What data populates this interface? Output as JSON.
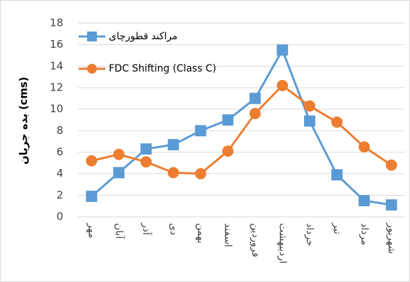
{
  "chart_data": {
    "type": "line",
    "y_label": "بده جریان (cms)",
    "categories": [
      "مهر",
      "آبان",
      "آذر",
      "دی",
      "بهمن",
      "اسفند",
      "فروردین",
      "اردیبهشت",
      "خرداد",
      "تیر",
      "مرداد",
      "شهریور"
    ],
    "series": [
      {
        "name": "مراکند قطورچای",
        "color": "#5b9bd5",
        "marker": "square",
        "values": [
          1.9,
          4.1,
          6.3,
          6.7,
          8.0,
          9.0,
          11.0,
          15.5,
          8.9,
          3.9,
          1.5,
          1.1
        ]
      },
      {
        "name": "FDC Shifting (Class C)",
        "color": "#ed7d31",
        "marker": "circle",
        "values": [
          5.2,
          5.8,
          5.1,
          4.1,
          4.0,
          6.1,
          9.6,
          12.2,
          10.3,
          8.8,
          6.5,
          4.8
        ]
      }
    ],
    "ylim": [
      0,
      18
    ],
    "yticks": [
      0,
      2,
      4,
      6,
      8,
      10,
      12,
      14,
      16,
      18
    ],
    "grid": true,
    "legend": "top-left"
  }
}
